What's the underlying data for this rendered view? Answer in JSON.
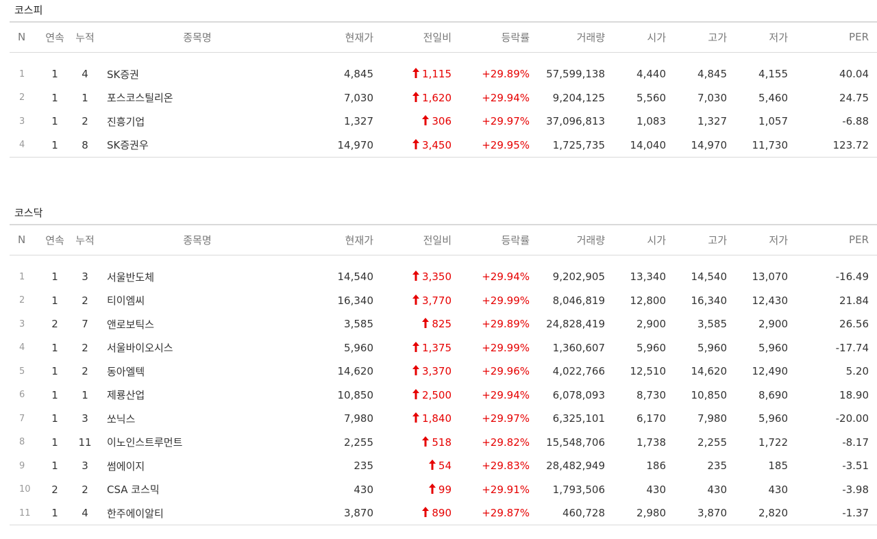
{
  "kospi": {
    "title": "코스피",
    "headers": [
      "N",
      "연속",
      "누적",
      "종목명",
      "현재가",
      "전일비",
      "등락률",
      "거래량",
      "시가",
      "고가",
      "저가",
      "PER"
    ],
    "rows": [
      {
        "n": "1",
        "streak": "1",
        "total": "4",
        "name": "SK증권",
        "price": "4,845",
        "change": "1,115",
        "rate": "+29.89%",
        "volume": "57,599,138",
        "open": "4,440",
        "high": "4,845",
        "low": "4,155",
        "per": "40.04"
      },
      {
        "n": "2",
        "streak": "1",
        "total": "1",
        "name": "포스코스틸리온",
        "price": "7,030",
        "change": "1,620",
        "rate": "+29.94%",
        "volume": "9,204,125",
        "open": "5,560",
        "high": "7,030",
        "low": "5,460",
        "per": "24.75"
      },
      {
        "n": "3",
        "streak": "1",
        "total": "2",
        "name": "진흥기업",
        "price": "1,327",
        "change": "306",
        "rate": "+29.97%",
        "volume": "37,096,813",
        "open": "1,083",
        "high": "1,327",
        "low": "1,057",
        "per": "-6.88"
      },
      {
        "n": "4",
        "streak": "1",
        "total": "8",
        "name": "SK증권우",
        "price": "14,970",
        "change": "3,450",
        "rate": "+29.95%",
        "volume": "1,725,735",
        "open": "14,040",
        "high": "14,970",
        "low": "11,730",
        "per": "123.72"
      }
    ]
  },
  "kosdaq": {
    "title": "코스닥",
    "headers": [
      "N",
      "연속",
      "누적",
      "종목명",
      "현재가",
      "전일비",
      "등락률",
      "거래량",
      "시가",
      "고가",
      "저가",
      "PER"
    ],
    "rows": [
      {
        "n": "1",
        "streak": "1",
        "total": "3",
        "name": "서울반도체",
        "price": "14,540",
        "change": "3,350",
        "rate": "+29.94%",
        "volume": "9,202,905",
        "open": "13,340",
        "high": "14,540",
        "low": "13,070",
        "per": "-16.49"
      },
      {
        "n": "2",
        "streak": "1",
        "total": "2",
        "name": "티이엠씨",
        "price": "16,340",
        "change": "3,770",
        "rate": "+29.99%",
        "volume": "8,046,819",
        "open": "12,800",
        "high": "16,340",
        "low": "12,430",
        "per": "21.84"
      },
      {
        "n": "3",
        "streak": "2",
        "total": "7",
        "name": "앤로보틱스",
        "price": "3,585",
        "change": "825",
        "rate": "+29.89%",
        "volume": "24,828,419",
        "open": "2,900",
        "high": "3,585",
        "low": "2,900",
        "per": "26.56"
      },
      {
        "n": "4",
        "streak": "1",
        "total": "2",
        "name": "서울바이오시스",
        "price": "5,960",
        "change": "1,375",
        "rate": "+29.99%",
        "volume": "1,360,607",
        "open": "5,960",
        "high": "5,960",
        "low": "5,960",
        "per": "-17.74"
      },
      {
        "n": "5",
        "streak": "1",
        "total": "2",
        "name": "동아엘텍",
        "price": "14,620",
        "change": "3,370",
        "rate": "+29.96%",
        "volume": "4,022,766",
        "open": "12,510",
        "high": "14,620",
        "low": "12,490",
        "per": "5.20"
      },
      {
        "n": "6",
        "streak": "1",
        "total": "1",
        "name": "제룡산업",
        "price": "10,850",
        "change": "2,500",
        "rate": "+29.94%",
        "volume": "6,078,093",
        "open": "8,730",
        "high": "10,850",
        "low": "8,690",
        "per": "18.90"
      },
      {
        "n": "7",
        "streak": "1",
        "total": "3",
        "name": "쏘닉스",
        "price": "7,980",
        "change": "1,840",
        "rate": "+29.97%",
        "volume": "6,325,101",
        "open": "6,170",
        "high": "7,980",
        "low": "5,960",
        "per": "-20.00"
      },
      {
        "n": "8",
        "streak": "1",
        "total": "11",
        "name": "이노인스트루먼트",
        "price": "2,255",
        "change": "518",
        "rate": "+29.82%",
        "volume": "15,548,706",
        "open": "1,738",
        "high": "2,255",
        "low": "1,722",
        "per": "-8.17"
      },
      {
        "n": "9",
        "streak": "1",
        "total": "3",
        "name": "썸에이지",
        "price": "235",
        "change": "54",
        "rate": "+29.83%",
        "volume": "28,482,949",
        "open": "186",
        "high": "235",
        "low": "185",
        "per": "-3.51"
      },
      {
        "n": "10",
        "streak": "2",
        "total": "2",
        "name": "CSA 코스믹",
        "price": "430",
        "change": "99",
        "rate": "+29.91%",
        "volume": "1,793,506",
        "open": "430",
        "high": "430",
        "low": "430",
        "per": "-3.98"
      },
      {
        "n": "11",
        "streak": "1",
        "total": "4",
        "name": "한주에이알티",
        "price": "3,870",
        "change": "890",
        "rate": "+29.87%",
        "volume": "460,728",
        "open": "2,980",
        "high": "3,870",
        "low": "2,820",
        "per": "-1.37"
      }
    ]
  },
  "colors": {
    "up": "#e60000",
    "border": "#d9d9d9",
    "header_text": "#777777"
  },
  "icons": {
    "change_direction": "up-arrow-icon"
  }
}
